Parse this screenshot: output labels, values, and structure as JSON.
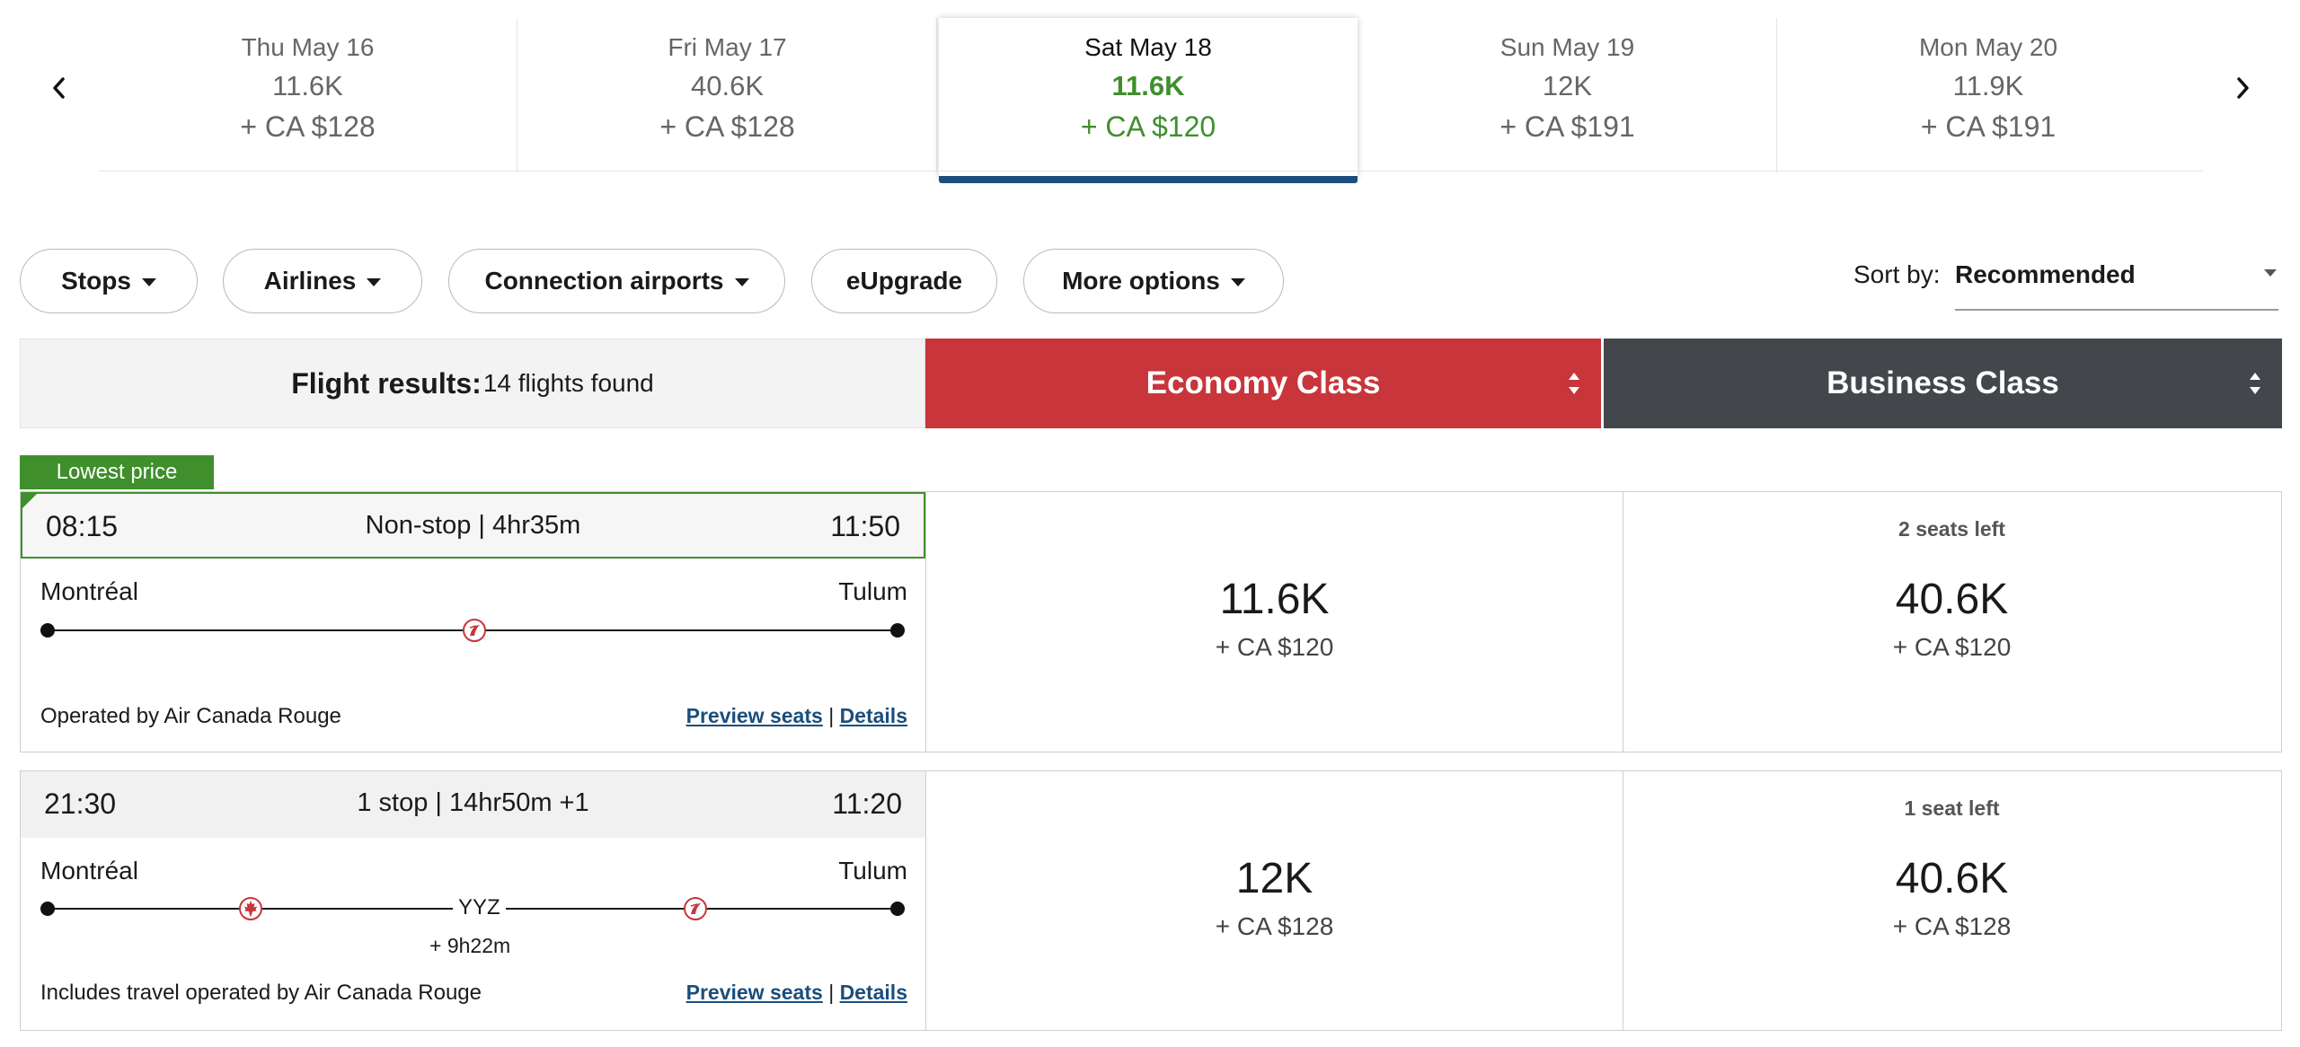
{
  "date_strip": {
    "dates": [
      {
        "date": "Thu May 16",
        "points": "11.6K",
        "cash": "+ CA $128"
      },
      {
        "date": "Fri May 17",
        "points": "40.6K",
        "cash": "+ CA $128"
      },
      {
        "date": "Sat May 18",
        "points": "11.6K",
        "cash": "+ CA $120"
      },
      {
        "date": "Sun May 19",
        "points": "12K",
        "cash": "+ CA $191"
      },
      {
        "date": "Mon May 20",
        "points": "11.9K",
        "cash": "+ CA $191"
      }
    ],
    "selected_index": 2
  },
  "filters": {
    "stops": "Stops",
    "airlines": "Airlines",
    "connection_airports": "Connection airports",
    "eupgrade": "eUpgrade",
    "more_options": "More options"
  },
  "sort": {
    "label": "Sort by:",
    "value": "Recommended"
  },
  "results_header": {
    "label": "Flight results:",
    "count": "14 flights found"
  },
  "cabins": {
    "economy": "Economy Class",
    "business": "Business Class"
  },
  "badge": "Lowest price",
  "flights": [
    {
      "departure": "08:15",
      "summary": "Non-stop | 4hr35m",
      "arrival": "11:50",
      "origin": "Montréal",
      "destination": "Tulum",
      "operated_by": "Operated by Air Canada Rouge",
      "preview_seats": "Preview seats",
      "separator": "|",
      "details": "Details",
      "economy": {
        "seats_left": "",
        "points": "11.6K",
        "cash": "+ CA $120"
      },
      "business": {
        "seats_left": "2 seats left",
        "points": "40.6K",
        "cash": "+ CA $120"
      }
    },
    {
      "departure": "21:30",
      "summary": "1 stop | 14hr50m +1",
      "arrival": "11:20",
      "origin": "Montréal",
      "destination": "Tulum",
      "stop_code": "YYZ",
      "layover": "+ 9h22m",
      "operated_by": "Includes travel operated by Air Canada Rouge",
      "preview_seats": "Preview seats",
      "separator": "|",
      "details": "Details",
      "economy": {
        "seats_left": "",
        "points": "12K",
        "cash": "+ CA $128"
      },
      "business": {
        "seats_left": "1 seat left",
        "points": "40.6K",
        "cash": "+ CA $128"
      }
    }
  ],
  "colors": {
    "economy_header": "#c8353a",
    "business_header": "#43464b",
    "lowest_price_green": "#3f8f2c",
    "selected_date_bar": "#1b4e7c",
    "link": "#1b4e7c"
  },
  "icons": {
    "prev": "chevron-left-icon",
    "next": "chevron-right-icon",
    "rouge": "air-canada-rouge-logo-icon",
    "maple": "air-canada-maple-leaf-icon"
  }
}
